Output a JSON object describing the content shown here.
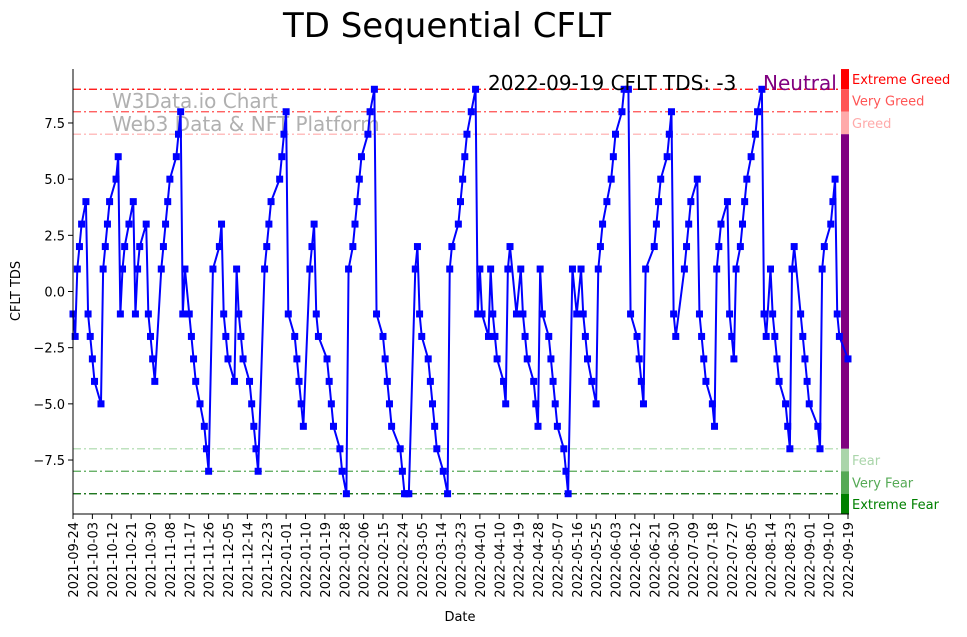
{
  "chart_data": {
    "type": "line",
    "title": "TD Sequential CFLT",
    "xlabel": "Date",
    "ylabel": "CFLT TDS",
    "start_date": "2021-09-24",
    "end_date": "2022-09-19",
    "x_unit": "days since start_date",
    "ylim": [
      -9.9,
      9.9
    ],
    "yticks": [
      -7.5,
      -5.0,
      -2.5,
      0.0,
      2.5,
      5.0,
      7.5
    ],
    "ytick_labels": [
      "−7.5",
      "−5.0",
      "−2.5",
      "0.0",
      "2.5",
      "5.0",
      "7.5"
    ],
    "xtick_labels": [
      "2021-09-24",
      "2021-10-03",
      "2021-10-12",
      "2021-10-21",
      "2021-10-30",
      "2021-11-08",
      "2021-11-17",
      "2021-11-26",
      "2021-12-05",
      "2021-12-14",
      "2021-12-23",
      "2022-01-01",
      "2022-01-10",
      "2022-01-19",
      "2022-01-28",
      "2022-02-06",
      "2022-02-15",
      "2022-02-24",
      "2022-03-05",
      "2022-03-14",
      "2022-03-23",
      "2022-04-01",
      "2022-04-10",
      "2022-04-19",
      "2022-04-28",
      "2022-05-07",
      "2022-05-16",
      "2022-05-25",
      "2022-06-03",
      "2022-06-12",
      "2022-06-21",
      "2022-06-30",
      "2022-07-09",
      "2022-07-18",
      "2022-07-27",
      "2022-08-05",
      "2022-08-14",
      "2022-08-23",
      "2022-09-01",
      "2022-09-10",
      "2022-09-19"
    ],
    "xtick_step_days": 9,
    "grid": false,
    "series": [
      {
        "name": "CFLT TDS",
        "color": "#0000ff",
        "marker": "square",
        "points": [
          [
            0,
            -1
          ],
          [
            1,
            -2
          ],
          [
            2,
            1
          ],
          [
            3,
            2
          ],
          [
            4,
            3
          ],
          [
            6,
            4
          ],
          [
            7,
            -1
          ],
          [
            8,
            -2
          ],
          [
            9,
            -3
          ],
          [
            10,
            -4
          ],
          [
            13,
            -5
          ],
          [
            14,
            1
          ],
          [
            15,
            2
          ],
          [
            16,
            3
          ],
          [
            17,
            4
          ],
          [
            20,
            5
          ],
          [
            21,
            6
          ],
          [
            22,
            -1
          ],
          [
            23,
            1
          ],
          [
            24,
            2
          ],
          [
            26,
            3
          ],
          [
            28,
            4
          ],
          [
            29,
            -1
          ],
          [
            30,
            1
          ],
          [
            31,
            2
          ],
          [
            34,
            3
          ],
          [
            35,
            -1
          ],
          [
            36,
            -2
          ],
          [
            37,
            -3
          ],
          [
            38,
            -4
          ],
          [
            41,
            1
          ],
          [
            42,
            2
          ],
          [
            43,
            3
          ],
          [
            44,
            4
          ],
          [
            45,
            5
          ],
          [
            48,
            6
          ],
          [
            49,
            7
          ],
          [
            50,
            8
          ],
          [
            51,
            -1
          ],
          [
            52,
            1
          ],
          [
            54,
            -1
          ],
          [
            55,
            -2
          ],
          [
            56,
            -3
          ],
          [
            57,
            -4
          ],
          [
            59,
            -5
          ],
          [
            61,
            -6
          ],
          [
            62,
            -7
          ],
          [
            63,
            -8
          ],
          [
            65,
            1
          ],
          [
            68,
            2
          ],
          [
            69,
            3
          ],
          [
            70,
            -1
          ],
          [
            71,
            -2
          ],
          [
            72,
            -3
          ],
          [
            75,
            -4
          ],
          [
            76,
            1
          ],
          [
            77,
            -1
          ],
          [
            78,
            -2
          ],
          [
            79,
            -3
          ],
          [
            82,
            -4
          ],
          [
            83,
            -5
          ],
          [
            84,
            -6
          ],
          [
            85,
            -7
          ],
          [
            86,
            -8
          ],
          [
            89,
            1
          ],
          [
            90,
            2
          ],
          [
            91,
            3
          ],
          [
            92,
            4
          ],
          [
            96,
            5
          ],
          [
            97,
            6
          ],
          [
            98,
            7
          ],
          [
            99,
            8
          ],
          [
            100,
            -1
          ],
          [
            103,
            -2
          ],
          [
            104,
            -3
          ],
          [
            105,
            -4
          ],
          [
            106,
            -5
          ],
          [
            107,
            -6
          ],
          [
            110,
            1
          ],
          [
            111,
            2
          ],
          [
            112,
            3
          ],
          [
            113,
            -1
          ],
          [
            114,
            -2
          ],
          [
            118,
            -3
          ],
          [
            119,
            -4
          ],
          [
            120,
            -5
          ],
          [
            121,
            -6
          ],
          [
            124,
            -7
          ],
          [
            125,
            -8
          ],
          [
            127,
            -9
          ],
          [
            128,
            1
          ],
          [
            130,
            2
          ],
          [
            131,
            3
          ],
          [
            132,
            4
          ],
          [
            133,
            5
          ],
          [
            134,
            6
          ],
          [
            137,
            7
          ],
          [
            138,
            8
          ],
          [
            140,
            9
          ],
          [
            141,
            -1
          ],
          [
            144,
            -2
          ],
          [
            145,
            -3
          ],
          [
            146,
            -4
          ],
          [
            147,
            -5
          ],
          [
            148,
            -6
          ],
          [
            152,
            -7
          ],
          [
            153,
            -8
          ],
          [
            154,
            -9
          ],
          [
            155,
            -9
          ],
          [
            156,
            -9
          ],
          [
            159,
            1
          ],
          [
            160,
            2
          ],
          [
            161,
            -1
          ],
          [
            162,
            -2
          ],
          [
            165,
            -3
          ],
          [
            166,
            -4
          ],
          [
            167,
            -5
          ],
          [
            168,
            -6
          ],
          [
            169,
            -7
          ],
          [
            172,
            -8
          ],
          [
            174,
            -9
          ],
          [
            175,
            1
          ],
          [
            176,
            2
          ],
          [
            179,
            3
          ],
          [
            180,
            4
          ],
          [
            181,
            5
          ],
          [
            182,
            6
          ],
          [
            183,
            7
          ],
          [
            185,
            8
          ],
          [
            187,
            9
          ],
          [
            188,
            -1
          ],
          [
            189,
            1
          ],
          [
            190,
            -1
          ],
          [
            193,
            -2
          ],
          [
            194,
            1
          ],
          [
            195,
            -1
          ],
          [
            196,
            -2
          ],
          [
            197,
            -3
          ],
          [
            200,
            -4
          ],
          [
            201,
            -5
          ],
          [
            202,
            1
          ],
          [
            203,
            2
          ],
          [
            206,
            -1
          ],
          [
            208,
            1
          ],
          [
            209,
            -1
          ],
          [
            210,
            -2
          ],
          [
            211,
            -3
          ],
          [
            214,
            -4
          ],
          [
            215,
            -5
          ],
          [
            216,
            -6
          ],
          [
            217,
            1
          ],
          [
            218,
            -1
          ],
          [
            221,
            -2
          ],
          [
            222,
            -3
          ],
          [
            223,
            -4
          ],
          [
            224,
            -5
          ],
          [
            225,
            -6
          ],
          [
            228,
            -7
          ],
          [
            229,
            -8
          ],
          [
            230,
            -9
          ],
          [
            232,
            1
          ],
          [
            234,
            -1
          ],
          [
            236,
            1
          ],
          [
            237,
            -1
          ],
          [
            238,
            -2
          ],
          [
            239,
            -3
          ],
          [
            241,
            -4
          ],
          [
            243,
            -5
          ],
          [
            244,
            1
          ],
          [
            245,
            2
          ],
          [
            246,
            3
          ],
          [
            248,
            4
          ],
          [
            250,
            5
          ],
          [
            251,
            6
          ],
          [
            252,
            7
          ],
          [
            255,
            8
          ],
          [
            256,
            9
          ],
          [
            258,
            9
          ],
          [
            259,
            -1
          ],
          [
            262,
            -2
          ],
          [
            263,
            -3
          ],
          [
            264,
            -4
          ],
          [
            265,
            -5
          ],
          [
            266,
            1
          ],
          [
            270,
            2
          ],
          [
            271,
            3
          ],
          [
            272,
            4
          ],
          [
            273,
            5
          ],
          [
            276,
            6
          ],
          [
            277,
            7
          ],
          [
            278,
            8
          ],
          [
            279,
            -1
          ],
          [
            280,
            -2
          ],
          [
            284,
            1
          ],
          [
            285,
            2
          ],
          [
            286,
            3
          ],
          [
            287,
            4
          ],
          [
            290,
            5
          ],
          [
            291,
            -1
          ],
          [
            292,
            -2
          ],
          [
            293,
            -3
          ],
          [
            294,
            -4
          ],
          [
            297,
            -5
          ],
          [
            298,
            -6
          ],
          [
            299,
            1
          ],
          [
            300,
            2
          ],
          [
            301,
            3
          ],
          [
            304,
            4
          ],
          [
            305,
            -1
          ],
          [
            306,
            -2
          ],
          [
            307,
            -3
          ],
          [
            308,
            1
          ],
          [
            310,
            2
          ],
          [
            311,
            3
          ],
          [
            312,
            4
          ],
          [
            313,
            5
          ],
          [
            315,
            6
          ],
          [
            317,
            7
          ],
          [
            318,
            8
          ],
          [
            320,
            9
          ],
          [
            321,
            -1
          ],
          [
            322,
            -2
          ],
          [
            324,
            1
          ],
          [
            325,
            -1
          ],
          [
            326,
            -2
          ],
          [
            327,
            -3
          ],
          [
            328,
            -4
          ],
          [
            331,
            -5
          ],
          [
            332,
            -6
          ],
          [
            333,
            -7
          ],
          [
            334,
            1
          ],
          [
            335,
            2
          ],
          [
            338,
            -1
          ],
          [
            339,
            -2
          ],
          [
            340,
            -3
          ],
          [
            341,
            -4
          ],
          [
            342,
            -5
          ],
          [
            346,
            -6
          ],
          [
            347,
            -7
          ],
          [
            348,
            1
          ],
          [
            349,
            2
          ],
          [
            352,
            3
          ],
          [
            353,
            4
          ],
          [
            354,
            5
          ],
          [
            355,
            -1
          ],
          [
            356,
            -2
          ],
          [
            360,
            -3
          ]
        ]
      }
    ],
    "threshold_lines": [
      {
        "value": 9,
        "color": "#ff0000"
      },
      {
        "value": 8,
        "color": "#ff4d4d"
      },
      {
        "value": 7,
        "color": "#ffaaaa"
      },
      {
        "value": -7,
        "color": "#a8d8a8"
      },
      {
        "value": -8,
        "color": "#55a855"
      },
      {
        "value": -9,
        "color": "#006400"
      }
    ],
    "zones": [
      {
        "label": "Extreme Greed",
        "from": 9,
        "to": 9.9,
        "color": "#ff0000"
      },
      {
        "label": "Very Greed",
        "from": 8,
        "to": 9,
        "color": "#ff5555"
      },
      {
        "label": "Greed",
        "from": 7,
        "to": 8,
        "color": "#ffaaaa"
      },
      {
        "label": "Neutral",
        "from": -7,
        "to": 7,
        "color": "#800080"
      },
      {
        "label": "Fear",
        "from": -8,
        "to": -7,
        "color": "#aad5aa"
      },
      {
        "label": "Very Fear",
        "from": -9,
        "to": -8,
        "color": "#55aa55"
      },
      {
        "label": "Extreme Fear",
        "from": -9.9,
        "to": -9,
        "color": "#008000"
      }
    ],
    "annotation": {
      "text": "2022-09-19 CFLT TDS: -3",
      "status": "Neutral",
      "status_color": "#800080"
    },
    "watermark": [
      "W3Data.io Chart",
      "Web3 Data & NFT Platform"
    ]
  }
}
